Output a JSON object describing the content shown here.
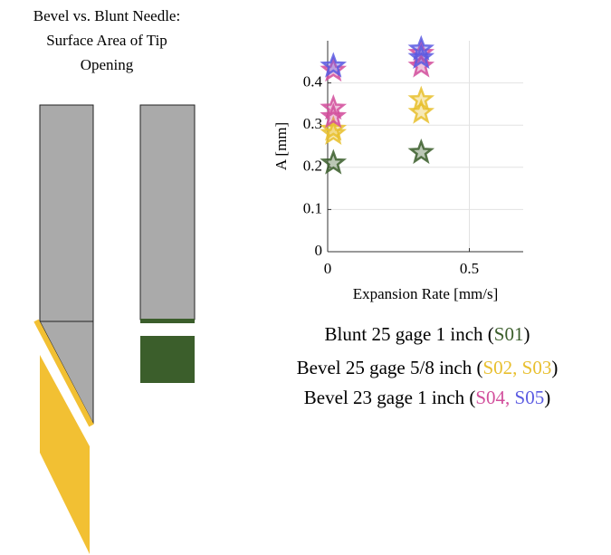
{
  "title": [
    "Bevel vs. Blunt Needle:",
    "Surface Area of Tip",
    "Opening"
  ],
  "legend": [
    {
      "prefix": "Blunt 25 gage 1 inch (",
      "suffix": ")"
    },
    {
      "prefix": "Bevel 25 gage 5/8 inch (",
      "separator": ", ",
      "suffix": ")"
    },
    {
      "prefix": "Bevel 23 gage 1 inch (",
      "separator": ", ",
      "suffix": ")"
    }
  ],
  "chart_data": {
    "type": "scatter",
    "x_label": "Expansion Rate [mm/s]",
    "y_label": "A [mm]",
    "xlim": [
      0,
      0.69
    ],
    "ylim": [
      0,
      0.5
    ],
    "xticks": [
      0,
      0.5
    ],
    "yticks": [
      0,
      0.1,
      0.2,
      0.3,
      0.4
    ],
    "grid": true,
    "series": [
      {
        "name": "S01",
        "color": "#3b5e2b",
        "x": [
          0.02,
          0.33
        ],
        "values": [
          0.21,
          0.235
        ]
      },
      {
        "name": "S02",
        "color": "#e8bf2e",
        "x": [
          0.02,
          0.33
        ],
        "values": [
          0.29,
          0.36
        ]
      },
      {
        "name": "S03",
        "color": "#e8bf2e",
        "x": [
          0.02,
          0.33
        ],
        "values": [
          0.28,
          0.33
        ]
      },
      {
        "name": "S04",
        "color": "#d24f9c",
        "x": [
          0.02,
          0.02,
          0.02,
          0.33,
          0.33
        ],
        "values": [
          0.34,
          0.32,
          0.43,
          0.47,
          0.44
        ]
      },
      {
        "name": "S05",
        "color": "#5b5be2",
        "x": [
          0.02,
          0.33,
          0.33
        ],
        "values": [
          0.44,
          0.48,
          0.46
        ]
      }
    ]
  }
}
